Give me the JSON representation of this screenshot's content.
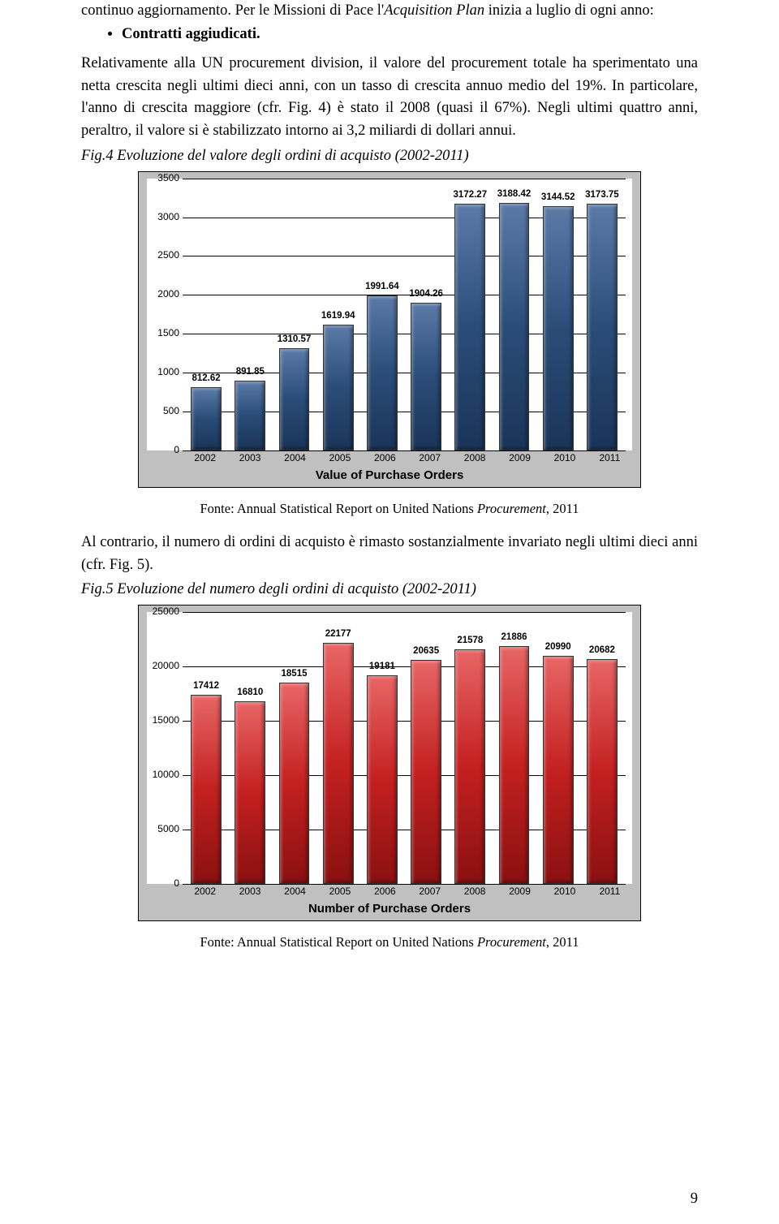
{
  "text": {
    "p1": "continuo aggiornamento. Per le Missioni di Pace l'Acquisition Plan inizia a luglio di ogni anno:",
    "bullet1": "Contratti aggiudicati.",
    "p2": "Relativamente alla UN procurement division, il valore del procurement totale ha sperimentato una netta crescita negli ultimi dieci anni, con un tasso di crescita annuo medio del 19%. In particolare, l'anno di crescita maggiore (cfr. Fig. 4) è stato il 2008 (quasi il 67%). Negli ultimi quattro anni, peraltro, il valore si è stabilizzato intorno ai 3,2 miliardi di dollari annui.",
    "fig4_caption": "Fig.4 Evoluzione del valore degli ordini di acquisto (2002-2011)",
    "source1": "Fonte: Annual Statistical Report on United Nations Procurement, 2011",
    "p3": "Al contrario, il numero di ordini di acquisto è rimasto sostanzialmente invariato negli ultimi dieci anni (cfr. Fig. 5).",
    "fig5_caption": "Fig.5 Evoluzione del numero degli ordini di acquisto (2002-2011)",
    "source2": "Fonte: Annual Statistical Report on United Nations Procurement, 2011",
    "page": "9"
  },
  "chart1": {
    "type": "bar",
    "axis_title": "Value of Purchase Orders",
    "categories": [
      "2002",
      "2003",
      "2004",
      "2005",
      "2006",
      "2007",
      "2008",
      "2009",
      "2010",
      "2011"
    ],
    "values": [
      812.62,
      891.85,
      1310.57,
      1619.94,
      1991.64,
      1904.26,
      3172.27,
      3188.42,
      3144.52,
      3173.75
    ],
    "labels": [
      "812.62",
      "891.85",
      "1310.57",
      "1619.94",
      "1991.64",
      "1904.26",
      "3172.27",
      "3188.42",
      "3144.52",
      "3173.75"
    ],
    "y_ticks": [
      0,
      500,
      1000,
      1500,
      2000,
      2500,
      3000,
      3500
    ],
    "ymax": 3500,
    "bar_color": "#2a4d78",
    "grid_color": "#000000",
    "bg_plot": "#ffffff",
    "bg_outer": "#c0c0c0",
    "label_fontsize": 12,
    "value_fontsize": 11.5
  },
  "chart2": {
    "type": "bar",
    "axis_title": "Number of Purchase Orders",
    "categories": [
      "2002",
      "2003",
      "2004",
      "2005",
      "2006",
      "2007",
      "2008",
      "2009",
      "2010",
      "2011"
    ],
    "values": [
      17412,
      16810,
      18515,
      22177,
      19181,
      20635,
      21578,
      21886,
      20990,
      20682
    ],
    "labels": [
      "17412",
      "16810",
      "18515",
      "22177",
      "19181",
      "20635",
      "21578",
      "21886",
      "20990",
      "20682"
    ],
    "y_ticks": [
      0,
      5000,
      10000,
      15000,
      20000,
      25000
    ],
    "ymax": 25000,
    "bar_color": "#c42020",
    "grid_color": "#000000",
    "bg_plot": "#ffffff",
    "bg_outer": "#c0c0c0",
    "label_fontsize": 12,
    "value_fontsize": 11.5
  }
}
